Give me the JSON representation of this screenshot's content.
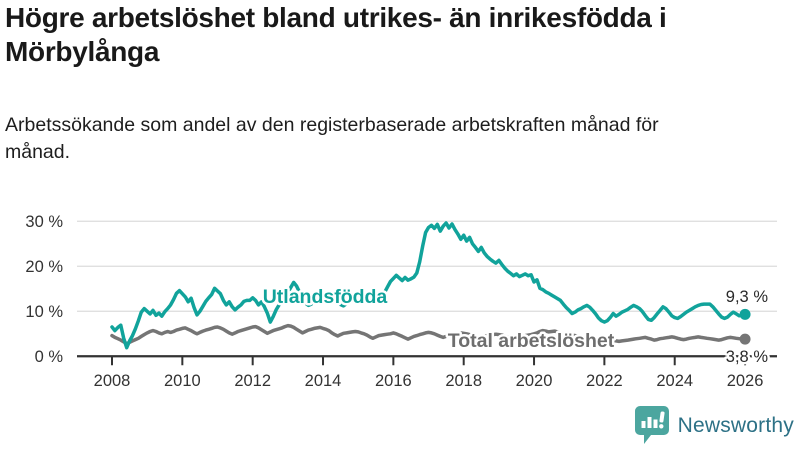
{
  "header": {
    "title": "Högre arbetslöshet bland utrikes- än inrikesfödda i Mörbylånga",
    "subtitle": "Arbetssökande som andel av den registerbaserade arbetskraften månad för månad."
  },
  "chart_data": {
    "type": "line",
    "x_unit": "month",
    "x_range": [
      "2008-01",
      "2026-01"
    ],
    "x_ticks": [
      {
        "label": "2008",
        "year": 2008
      },
      {
        "label": "2010",
        "year": 2010
      },
      {
        "label": "2012",
        "year": 2012
      },
      {
        "label": "2014",
        "year": 2014
      },
      {
        "label": "2016",
        "year": 2016
      },
      {
        "label": "2018",
        "year": 2018
      },
      {
        "label": "2020",
        "year": 2020
      },
      {
        "label": "2022",
        "year": 2022
      },
      {
        "label": "2024",
        "year": 2024
      },
      {
        "label": "2026",
        "year": 2026
      }
    ],
    "y_ticks": [
      {
        "label": "0 %",
        "value": 0
      },
      {
        "label": "10 %",
        "value": 10
      },
      {
        "label": "20 %",
        "value": 20
      },
      {
        "label": "30 %",
        "value": 30
      }
    ],
    "ylim": [
      0,
      32
    ],
    "grid": true,
    "series": [
      {
        "name": "Utlandsfödda",
        "color": "#11a39b",
        "end_label": "9,3 %",
        "end_value": 9.3,
        "values": [
          6.5,
          5.7,
          6.4,
          6.9,
          4.0,
          1.9,
          3.4,
          4.6,
          6.1,
          7.9,
          9.8,
          10.6,
          10.0,
          9.4,
          10.2,
          9.1,
          9.6,
          8.9,
          9.9,
          10.6,
          11.4,
          12.6,
          14.0,
          14.6,
          13.9,
          13.2,
          12.1,
          12.9,
          10.8,
          9.2,
          10.0,
          11.1,
          12.2,
          13.0,
          13.7,
          15.1,
          14.5,
          13.9,
          12.4,
          11.4,
          12.1,
          11.0,
          10.3,
          10.9,
          11.4,
          12.2,
          12.4,
          12.4,
          13.0,
          12.4,
          11.4,
          12.1,
          11.0,
          9.6,
          7.6,
          8.8,
          10.3,
          11.4,
          12.2,
          13.3,
          14.2,
          15.3,
          16.4,
          15.6,
          14.2,
          12.8,
          11.8,
          11.3,
          11.6,
          12.2,
          12.8,
          13.3,
          13.0,
          12.4,
          11.8,
          12.3,
          12.9,
          12.2,
          11.5,
          11.2,
          11.7,
          12.3,
          12.9,
          13.4,
          13.1,
          12.6,
          12.1,
          12.7,
          13.3,
          12.7,
          12.1,
          12.5,
          13.2,
          14.2,
          15.4,
          16.6,
          17.3,
          18.0,
          17.4,
          16.8,
          17.5,
          16.9,
          17.2,
          17.6,
          18.5,
          21.0,
          24.5,
          27.5,
          28.6,
          29.1,
          28.4,
          29.3,
          27.8,
          28.9,
          29.6,
          28.5,
          29.4,
          28.2,
          27.2,
          26.0,
          26.9,
          25.6,
          26.4,
          25.0,
          24.2,
          23.3,
          24.2,
          23.0,
          22.2,
          21.6,
          21.1,
          20.7,
          21.3,
          20.4,
          19.6,
          18.9,
          18.4,
          17.9,
          18.3,
          17.7,
          18.0,
          18.3,
          17.9,
          18.1,
          16.5,
          17.0,
          15.1,
          14.8,
          14.3,
          14.0,
          13.6,
          13.2,
          12.8,
          12.4,
          11.6,
          10.8,
          10.2,
          9.5,
          9.8,
          10.3,
          10.6,
          11.0,
          11.3,
          10.9,
          10.2,
          9.4,
          8.5,
          7.9,
          7.6,
          7.9,
          8.6,
          9.5,
          8.9,
          9.3,
          9.8,
          10.1,
          10.4,
          10.9,
          11.3,
          11.0,
          10.6,
          9.9,
          9.0,
          8.2,
          8.0,
          8.6,
          9.4,
          10.2,
          11.0,
          10.6,
          9.8,
          9.0,
          8.6,
          8.4,
          8.8,
          9.3,
          9.8,
          10.2,
          10.6,
          11.0,
          11.3,
          11.5,
          11.6,
          11.6,
          11.6,
          11.0,
          10.2,
          9.4,
          8.7,
          8.4,
          8.7,
          9.3,
          9.8,
          9.4,
          9.0,
          9.1,
          9.3
        ]
      },
      {
        "name": "Total arbetslöshet",
        "color": "#757575",
        "end_label": "3,8 %",
        "end_value": 3.8,
        "values": [
          4.6,
          4.2,
          3.9,
          3.6,
          3.2,
          2.8,
          3.1,
          3.4,
          3.7,
          4.0,
          4.4,
          4.8,
          5.2,
          5.5,
          5.7,
          5.5,
          5.2,
          5.0,
          5.3,
          5.5,
          5.3,
          5.5,
          5.8,
          6.0,
          6.2,
          6.3,
          6.0,
          5.7,
          5.3,
          5.0,
          5.3,
          5.6,
          5.8,
          6.0,
          6.2,
          6.4,
          6.5,
          6.3,
          6.0,
          5.6,
          5.2,
          4.9,
          5.2,
          5.5,
          5.7,
          5.9,
          6.1,
          6.3,
          6.5,
          6.6,
          6.3,
          5.9,
          5.5,
          5.1,
          5.4,
          5.7,
          5.9,
          6.1,
          6.3,
          6.6,
          6.8,
          6.7,
          6.4,
          6.0,
          5.6,
          5.2,
          5.5,
          5.8,
          6.0,
          6.2,
          6.3,
          6.4,
          6.2,
          6.0,
          5.7,
          5.2,
          4.8,
          4.5,
          4.8,
          5.1,
          5.2,
          5.3,
          5.4,
          5.5,
          5.4,
          5.2,
          5.0,
          4.7,
          4.3,
          4.0,
          4.3,
          4.6,
          4.7,
          4.8,
          4.9,
          5.0,
          5.2,
          5.0,
          4.7,
          4.4,
          4.1,
          3.8,
          4.1,
          4.4,
          4.6,
          4.8,
          5.0,
          5.2,
          5.3,
          5.2,
          5.0,
          4.7,
          4.4,
          4.2,
          4.4,
          4.7,
          4.9,
          5.0,
          5.1,
          5.2,
          5.1,
          5.0,
          4.8,
          4.5,
          4.2,
          4.0,
          4.2,
          4.4,
          4.6,
          4.7,
          4.8,
          4.9,
          4.8,
          4.7,
          4.5,
          4.3,
          4.1,
          3.9,
          4.1,
          4.3,
          4.5,
          4.6,
          4.7,
          4.8,
          5.0,
          5.2,
          5.5,
          5.7,
          5.6,
          5.4,
          5.5,
          5.6,
          5.4,
          5.2,
          5.0,
          4.9,
          4.8,
          4.7,
          4.6,
          4.4,
          4.2,
          4.0,
          4.1,
          4.2,
          4.1,
          4.0,
          3.9,
          3.8,
          3.8,
          3.7,
          3.6,
          3.5,
          3.4,
          3.3,
          3.4,
          3.5,
          3.6,
          3.7,
          3.8,
          3.9,
          4.0,
          4.1,
          4.2,
          4.0,
          3.8,
          3.6,
          3.7,
          3.9,
          4.0,
          4.1,
          4.2,
          4.3,
          4.2,
          4.0,
          3.8,
          3.7,
          3.8,
          4.0,
          4.1,
          4.2,
          4.3,
          4.2,
          4.1,
          4.0,
          3.9,
          3.8,
          3.7,
          3.6,
          3.7,
          3.9,
          4.1,
          4.2,
          4.1,
          4.0,
          3.9,
          3.8,
          3.8
        ]
      }
    ],
    "colors": {
      "grid": "#dcdcdc",
      "axis": "#333333",
      "tick_label": "#333333",
      "value_label": "#2a2a2a"
    },
    "legend_position": "inline"
  },
  "footer": {
    "brand": "Newsworthy",
    "brand_color": "#2d7186",
    "logo_color": "#4ca69f"
  }
}
